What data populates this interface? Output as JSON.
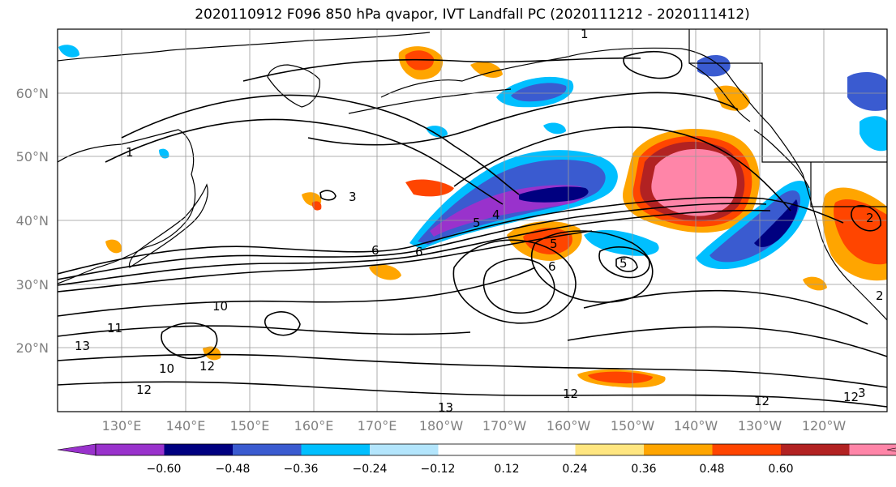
{
  "title": "2020110912 F096 850 hPa qvapor, IVT Landfall PC (2020111212 - 2020111412)",
  "map": {
    "lat_labels": [
      "60°N",
      "50°N",
      "40°N",
      "30°N",
      "20°N"
    ],
    "lon_labels": [
      "130°E",
      "140°E",
      "150°E",
      "160°E",
      "170°E",
      "180°W",
      "170°W",
      "160°W",
      "150°W",
      "140°W",
      "130°W",
      "120°W"
    ],
    "gridlines": true
  },
  "contour_labels": [
    "1",
    "1",
    "3",
    "4",
    "5",
    "6",
    "6",
    "5",
    "6",
    "5",
    "10",
    "11",
    "13",
    "12",
    "12",
    "10",
    "12",
    "13",
    "12",
    "12",
    "3",
    "2",
    "2"
  ],
  "colorbar": {
    "colors": [
      "#9932cc",
      "#000080",
      "#3a5bd0",
      "#00bfff",
      "#b3e5fc",
      "#ffffff",
      "#ffffff",
      "#ffe680",
      "#ffa500",
      "#ff4500",
      "#b22222",
      "#ff85a8"
    ],
    "tick_labels": [
      "−0.60",
      "−0.48",
      "−0.36",
      "−0.24",
      "−0.12",
      "0.12",
      "0.24",
      "0.36",
      "0.48",
      "0.60"
    ]
  }
}
